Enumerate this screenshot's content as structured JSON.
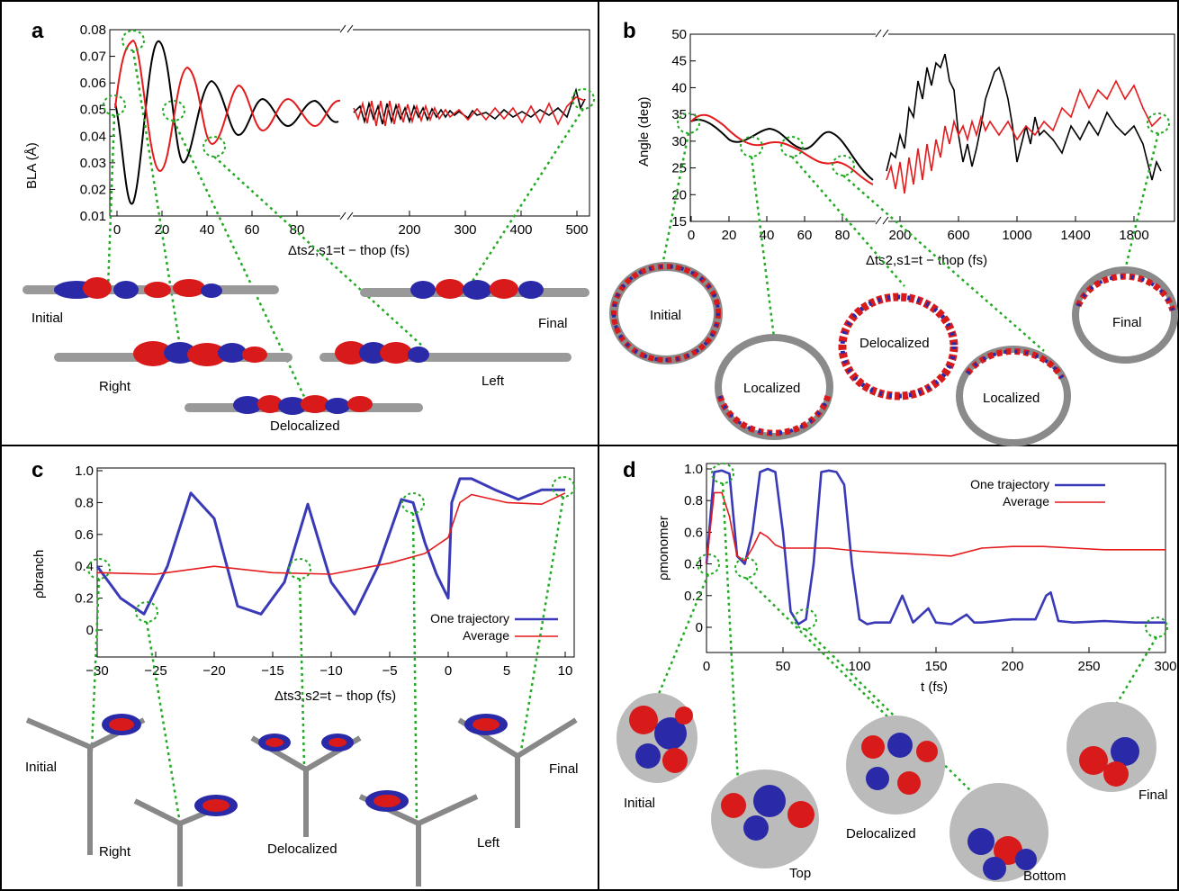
{
  "panels": {
    "a": {
      "letter": "a",
      "ylabel": "BLA (Å)",
      "xlabel": "Δts2,s1=t − thop (fs)",
      "yticks": [
        "0.01",
        "0.02",
        "0.03",
        "0.04",
        "0.05",
        "0.06",
        "0.07",
        "0.08"
      ],
      "xticks_left": [
        "0",
        "20",
        "40",
        "60",
        "80"
      ],
      "xticks_right": [
        "200",
        "300",
        "400",
        "500"
      ],
      "structures": [
        "Initial",
        "Right",
        "Delocalized",
        "Left",
        "Final"
      ]
    },
    "b": {
      "letter": "b",
      "ylabel": "Angle (deg)",
      "xlabel": "Δts2,s1=t − thop (fs)",
      "yticks": [
        "15",
        "20",
        "25",
        "30",
        "35",
        "40",
        "45",
        "50"
      ],
      "xticks_left": [
        "0",
        "20",
        "40",
        "60",
        "80"
      ],
      "xticks_right": [
        "200",
        "600",
        "1000",
        "1400",
        "1800"
      ],
      "structures": [
        "Initial",
        "Localized",
        "Delocalized",
        "Localized",
        "Final"
      ]
    },
    "c": {
      "letter": "c",
      "ylabel": "ρbranch",
      "xlabel": "Δts3,s2=t − thop (fs)",
      "yticks": [
        "0",
        "0.2",
        "0.4",
        "0.6",
        "0.8",
        "1.0"
      ],
      "xticks": [
        "−30",
        "−25",
        "−20",
        "−15",
        "−10",
        "−5",
        "0",
        "5",
        "10"
      ],
      "legend": [
        "One trajectory",
        "Average"
      ],
      "structures": [
        "Initial",
        "Right",
        "Delocalized",
        "Left",
        "Final"
      ]
    },
    "d": {
      "letter": "d",
      "ylabel": "ρmonomer",
      "xlabel": "t (fs)",
      "yticks": [
        "0",
        "0.2",
        "0.4",
        "0.6",
        "0.8",
        "1.0"
      ],
      "xticks": [
        "0",
        "50",
        "100",
        "150",
        "200",
        "250",
        "300"
      ],
      "legend": [
        "One trajectory",
        "Average"
      ],
      "structures": [
        "Initial",
        "Top",
        "Delocalized",
        "Bottom",
        "Final"
      ]
    }
  },
  "colors": {
    "trajectory_black": "#000000",
    "average_red": "#e41a1c",
    "trajectory_blue": "#3a3ab8",
    "guide_green": "#22aa22",
    "orbital_red": "#d91a1a",
    "orbital_blue": "#2a2aa8"
  },
  "chart_data": [
    {
      "panel": "a",
      "type": "line",
      "ylabel": "BLA (Å)",
      "ylim": [
        0.01,
        0.08
      ],
      "x_break": [
        100,
        150
      ],
      "xlim": [
        0,
        500
      ],
      "series": [
        {
          "x": [
            0,
            5,
            10,
            15,
            20,
            25,
            30,
            35,
            40,
            45,
            50,
            55,
            60,
            65,
            70,
            75,
            80,
            85,
            90,
            95,
            100
          ],
          "values": [
            0.052,
            0.022,
            0.018,
            0.055,
            0.075,
            0.05,
            0.03,
            0.04,
            0.06,
            0.054,
            0.04,
            0.044,
            0.057,
            0.052,
            0.042,
            0.047,
            0.054,
            0.05,
            0.044,
            0.049,
            0.052
          ]
        },
        {
          "x": [
            0,
            5,
            10,
            15,
            20,
            25,
            30,
            35,
            40,
            45,
            50,
            55,
            60,
            65,
            70,
            75,
            80,
            85,
            90,
            95,
            100
          ],
          "values": [
            0.05,
            0.07,
            0.076,
            0.045,
            0.027,
            0.046,
            0.066,
            0.052,
            0.035,
            0.043,
            0.058,
            0.05,
            0.039,
            0.046,
            0.055,
            0.049,
            0.041,
            0.047,
            0.053,
            0.048,
            0.043
          ]
        }
      ]
    },
    {
      "panel": "b",
      "type": "line",
      "ylabel": "Angle (deg)",
      "ylim": [
        15,
        50
      ],
      "x_break": [
        100,
        150
      ],
      "xlim": [
        0,
        1950
      ],
      "series": [
        {
          "x": [
            0,
            10,
            20,
            30,
            40,
            50,
            60,
            70,
            80,
            90,
            100
          ],
          "values": [
            33,
            32,
            30,
            29,
            32,
            31,
            29,
            30,
            33,
            30,
            22
          ]
        },
        {
          "x": [
            0,
            10,
            20,
            30,
            40,
            50,
            60,
            70,
            80,
            90,
            100
          ],
          "values": [
            34,
            34,
            32,
            29,
            29,
            30,
            28,
            26,
            25,
            24,
            21
          ]
        }
      ]
    },
    {
      "panel": "c",
      "type": "line",
      "ylabel": "ρbranch",
      "ylim": [
        -0.1,
        1.0
      ],
      "xlim": [
        -30,
        10
      ],
      "series": [
        {
          "name": "One trajectory",
          "x": [
            -30,
            -28,
            -26,
            -24,
            -22,
            -20,
            -18,
            -16,
            -14,
            -12,
            -10,
            -8,
            -6,
            -4,
            -3,
            -2,
            -1,
            0,
            0.3,
            1,
            2,
            4,
            6,
            8,
            10
          ],
          "values": [
            0.4,
            0.2,
            0.1,
            0.4,
            0.86,
            0.7,
            0.15,
            0.1,
            0.3,
            0.79,
            0.3,
            0.1,
            0.4,
            0.82,
            0.8,
            0.55,
            0.35,
            0.2,
            0.8,
            0.95,
            0.95,
            0.88,
            0.82,
            0.88,
            0.88
          ]
        },
        {
          "name": "Average",
          "x": [
            -30,
            -25,
            -20,
            -15,
            -10,
            -5,
            -2,
            0,
            1,
            2,
            5,
            8,
            10
          ],
          "values": [
            0.36,
            0.35,
            0.4,
            0.36,
            0.35,
            0.42,
            0.48,
            0.58,
            0.8,
            0.85,
            0.8,
            0.79,
            0.86
          ]
        }
      ]
    },
    {
      "panel": "d",
      "type": "line",
      "ylabel": "ρmonomer",
      "xlabel": "t (fs)",
      "ylim": [
        -0.1,
        1.05
      ],
      "xlim": [
        0,
        300
      ],
      "series": [
        {
          "name": "One trajectory",
          "x": [
            0,
            5,
            10,
            15,
            20,
            25,
            30,
            35,
            40,
            45,
            50,
            55,
            60,
            65,
            70,
            75,
            80,
            85,
            90,
            95,
            100,
            105,
            110,
            120,
            128,
            135,
            145,
            150,
            160,
            170,
            175,
            180,
            200,
            215,
            222,
            225,
            230,
            240,
            260,
            280,
            300
          ],
          "values": [
            0.4,
            0.98,
            0.99,
            0.97,
            0.45,
            0.4,
            0.6,
            0.98,
            1.0,
            0.98,
            0.6,
            0.1,
            0.02,
            0.05,
            0.4,
            0.98,
            0.99,
            0.98,
            0.9,
            0.4,
            0.05,
            0.02,
            0.03,
            0.03,
            0.2,
            0.03,
            0.12,
            0.03,
            0.02,
            0.08,
            0.03,
            0.03,
            0.05,
            0.05,
            0.2,
            0.22,
            0.04,
            0.03,
            0.04,
            0.03,
            0.03
          ]
        },
        {
          "name": "Average",
          "x": [
            0,
            5,
            10,
            15,
            20,
            25,
            30,
            35,
            40,
            45,
            50,
            60,
            80,
            100,
            120,
            140,
            160,
            180,
            200,
            220,
            240,
            260,
            280,
            300
          ],
          "values": [
            0.4,
            0.85,
            0.85,
            0.7,
            0.45,
            0.42,
            0.5,
            0.6,
            0.57,
            0.52,
            0.5,
            0.5,
            0.5,
            0.48,
            0.47,
            0.46,
            0.45,
            0.5,
            0.51,
            0.51,
            0.5,
            0.49,
            0.49,
            0.49
          ]
        }
      ]
    }
  ]
}
